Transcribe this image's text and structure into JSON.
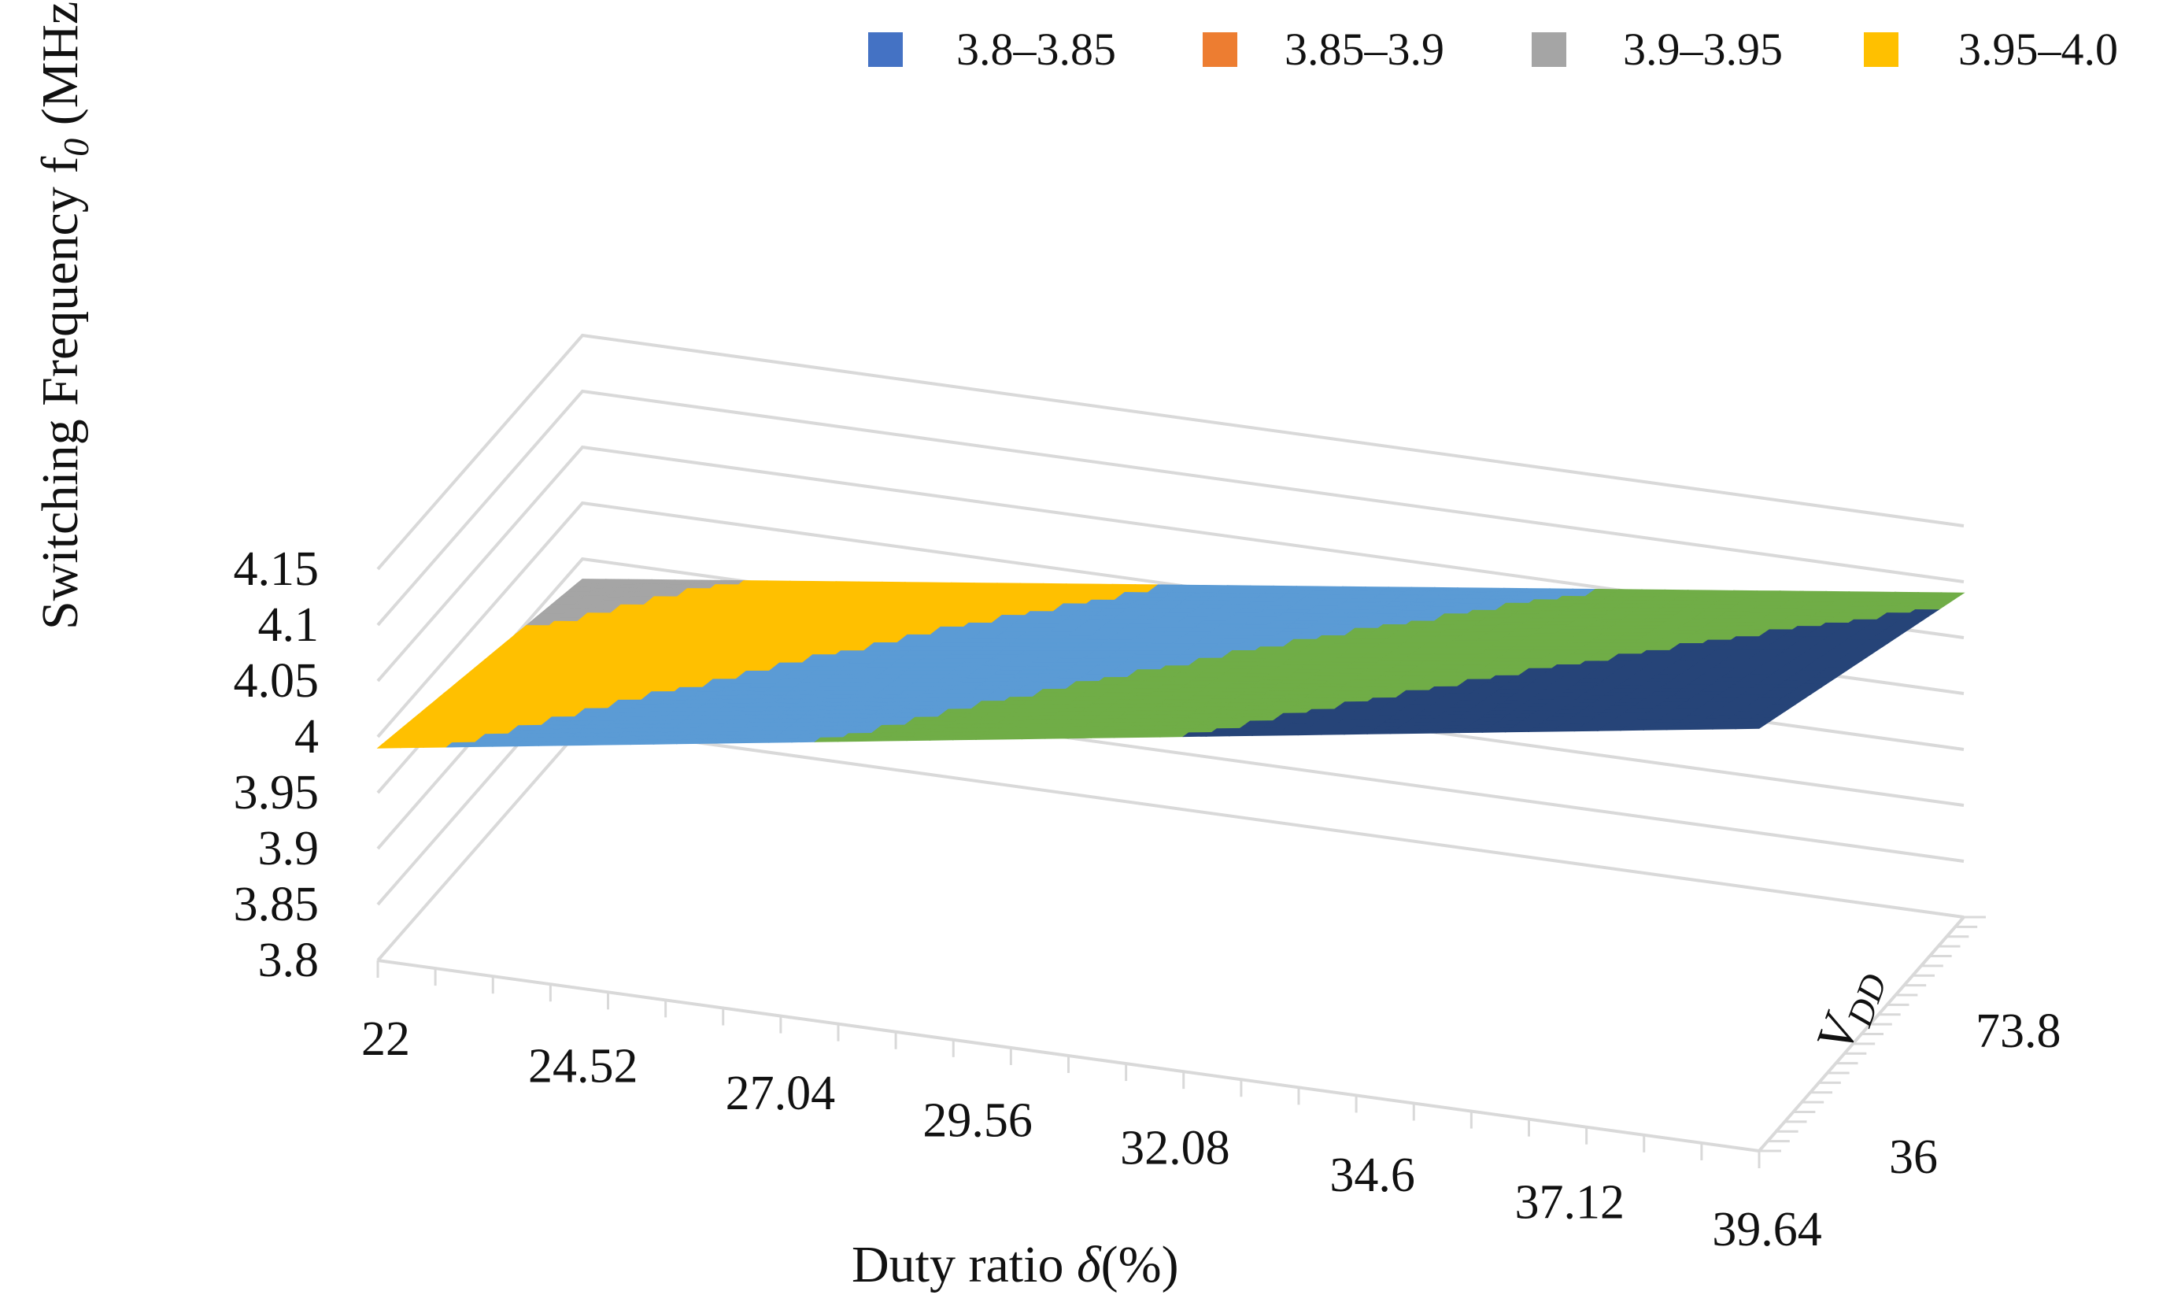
{
  "chart_data": {
    "type": "surface",
    "title": "",
    "x_axis": {
      "label": "Duty ratio",
      "symbol": "δ",
      "unit": "(%)",
      "ticks": [
        "22",
        "24.52",
        "27.04",
        "29.56",
        "32.08",
        "34.6",
        "37.12",
        "39.64"
      ],
      "range": [
        22,
        39.64
      ]
    },
    "y_axis": {
      "label": "V",
      "subscript": "DD",
      "ticks": [
        "36",
        "73.8"
      ],
      "range": [
        36,
        73.8
      ]
    },
    "z_axis": {
      "label": "Switching Frequency f",
      "subscript": "0",
      "unit": " (MHz)",
      "ticks": [
        "3.8",
        "3.85",
        "3.9",
        "3.95",
        "4",
        "4.05",
        "4.1",
        "4.15"
      ],
      "range": [
        3.8,
        4.15
      ]
    },
    "legend": {
      "placement": "top",
      "entries": [
        {
          "label": "3.8–3.85",
          "color": "#4472C4"
        },
        {
          "label": "3.85–3.9",
          "color": "#ED7D31"
        },
        {
          "label": "3.9–3.95",
          "color": "#A5A5A5"
        },
        {
          "label": "3.95–4.0",
          "color": "#FFC000"
        }
      ]
    },
    "bands": [
      {
        "range": [
          3.9,
          3.95
        ],
        "color": "#A5A5A5"
      },
      {
        "range": [
          3.95,
          4.0
        ],
        "color": "#FFC000"
      },
      {
        "range": [
          4.0,
          4.05
        ],
        "color": "#5B9BD5"
      },
      {
        "range": [
          4.05,
          4.1
        ],
        "color": "#70AD47"
      },
      {
        "range": [
          4.1,
          4.2
        ],
        "color": "#264478"
      }
    ],
    "surface": {
      "duty_ratio": [
        22,
        39.64
      ],
      "vdd": [
        36,
        73.8
      ],
      "f0_grid": [
        [
          3.99,
          3.932
        ],
        [
          4.178,
          4.09
        ]
      ]
    }
  }
}
